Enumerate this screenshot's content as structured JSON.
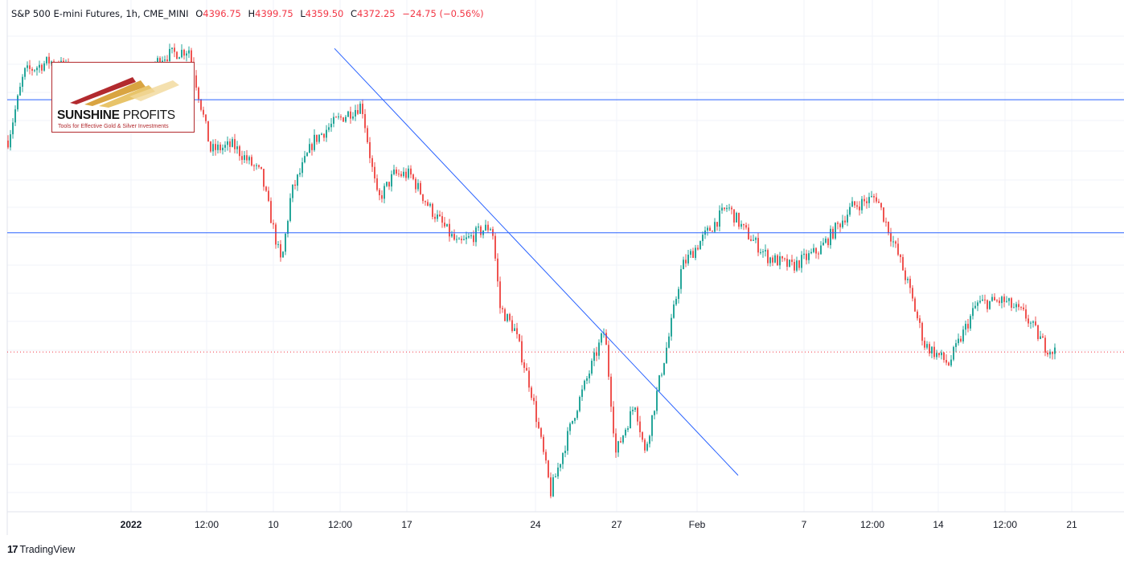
{
  "legend": {
    "title": "S&P 500 E-mini Futures, 1h, CME_MINI",
    "open_label": "O",
    "open": "4396.75",
    "high_label": "H",
    "high": "4399.75",
    "low_label": "L",
    "low": "4359.50",
    "close_label": "C",
    "close": "4372.25",
    "change": "−24.75 (−0.56%)"
  },
  "logo": {
    "brand_bold": "SUNSHINE",
    "brand_thin": " PROFITS",
    "tagline": "Tools for Effective Gold & Silver Investments"
  },
  "footer": {
    "brand_mark": "17",
    "brand": "TradingView"
  },
  "colors": {
    "up": "#26a69a",
    "down": "#ef5350",
    "line": "#2962ff",
    "last": "#f23645",
    "grid": "#f0f3fa"
  },
  "chart_data": {
    "type": "candlestick",
    "interval": "1h",
    "x_ticks": [
      "2022",
      "12:00",
      "10",
      "12:00",
      "17",
      "24",
      "27",
      "Feb",
      "7",
      "12:00",
      "14",
      "12:00",
      "21"
    ],
    "y_range": [
      4230,
      4700
    ],
    "last_price": 4372.25,
    "horizontal_lines": [
      4632,
      4495
    ],
    "trendline": {
      "from": {
        "time": "Jan 12",
        "price": 4660
      },
      "to": {
        "time": "Jan 31",
        "price": 4318
      }
    },
    "price_path": [
      {
        "t": "Dec 29",
        "p": 4590
      },
      {
        "t": "Dec 30",
        "p": 4660
      },
      {
        "t": "Dec 31",
        "p": 4672
      },
      {
        "t": "Jan 3",
        "p": 4636
      },
      {
        "t": "Jan 4",
        "p": 4676
      },
      {
        "t": "Jan 5",
        "p": 4684
      },
      {
        "t": "Jan 6",
        "p": 4580
      },
      {
        "t": "Jan 7",
        "p": 4585
      },
      {
        "t": "Jan 8",
        "p": 4555
      },
      {
        "t": "Jan 10",
        "p": 4462
      },
      {
        "t": "Jan 10",
        "p": 4535
      },
      {
        "t": "Jan 11",
        "p": 4590
      },
      {
        "t": "Jan 12",
        "p": 4610
      },
      {
        "t": "Jan 13",
        "p": 4627
      },
      {
        "t": "Jan 13",
        "p": 4565
      },
      {
        "t": "Jan 14",
        "p": 4528
      },
      {
        "t": "Jan 15",
        "p": 4555
      },
      {
        "t": "Jan 17",
        "p": 4555
      },
      {
        "t": "Jan 18",
        "p": 4520
      },
      {
        "t": "Jan 19",
        "p": 4482
      },
      {
        "t": "Jan 20",
        "p": 4498
      },
      {
        "t": "Jan 20",
        "p": 4502
      },
      {
        "t": "Jan 21",
        "p": 4418
      },
      {
        "t": "Jan 22",
        "p": 4395
      },
      {
        "t": "Jan 23",
        "p": 4335
      },
      {
        "t": "Jan 24",
        "p": 4228
      },
      {
        "t": "Jan 25",
        "p": 4310
      },
      {
        "t": "Jan 26",
        "p": 4395
      },
      {
        "t": "Jan 27",
        "p": 4268
      },
      {
        "t": "Jan 28",
        "p": 4320
      },
      {
        "t": "Jan 28",
        "p": 4268
      },
      {
        "t": "Jan 31",
        "p": 4342
      },
      {
        "t": "Jan 31",
        "p": 4388
      },
      {
        "t": "Feb 1",
        "p": 4460
      },
      {
        "t": "Feb 2",
        "p": 4485
      },
      {
        "t": "Feb 3",
        "p": 4522
      },
      {
        "t": "Feb 4",
        "p": 4498
      },
      {
        "t": "Feb 6",
        "p": 4470
      },
      {
        "t": "Feb 7",
        "p": 4460
      },
      {
        "t": "Feb 8",
        "p": 4478
      },
      {
        "t": "Feb 9",
        "p": 4522
      },
      {
        "t": "Feb 10",
        "p": 4532
      },
      {
        "t": "Feb 11",
        "p": 4470
      },
      {
        "t": "Feb 11",
        "p": 4440
      },
      {
        "t": "Feb 13",
        "p": 4380
      },
      {
        "t": "Feb 14",
        "p": 4360
      },
      {
        "t": "Feb 15",
        "p": 4422
      },
      {
        "t": "Feb 16",
        "p": 4425
      },
      {
        "t": "Feb 17",
        "p": 4410
      },
      {
        "t": "Feb 18",
        "p": 4378
      },
      {
        "t": "Feb 18",
        "p": 4372.25
      }
    ]
  }
}
